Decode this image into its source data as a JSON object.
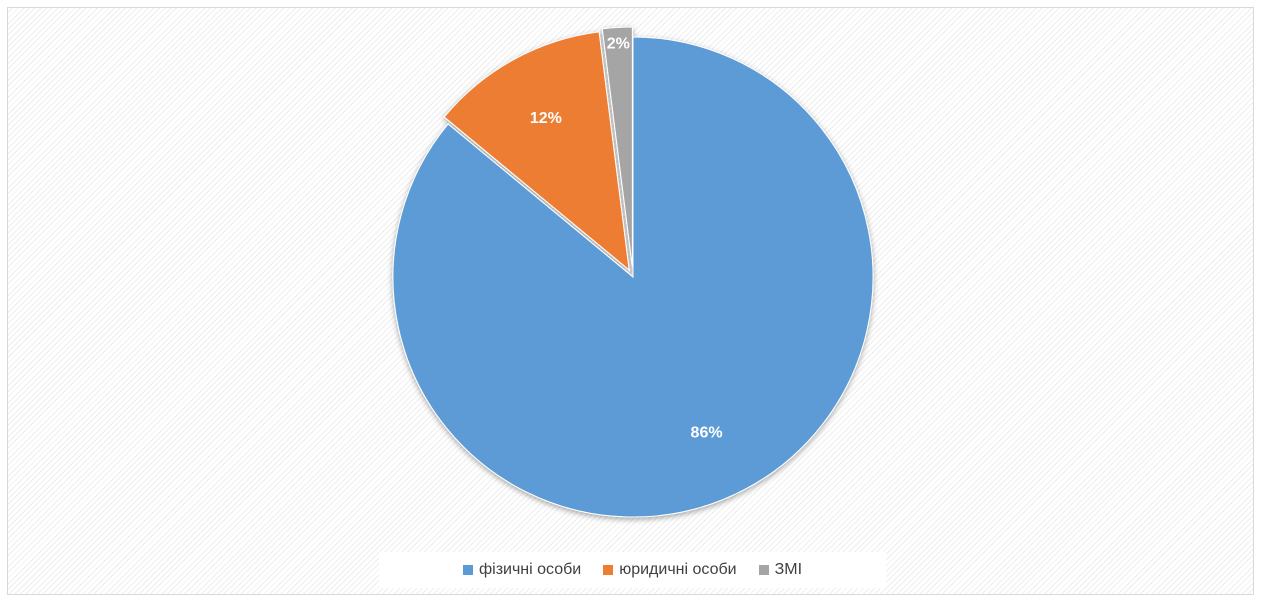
{
  "chart_data": {
    "type": "pie",
    "title": "",
    "categories": [
      "фізичні особи",
      "юридичні особи",
      "ЗМІ"
    ],
    "values": [
      86,
      12,
      2
    ],
    "data_labels": [
      "86%",
      "12%",
      "2%"
    ],
    "colors": [
      "#5b9bd5",
      "#ed7d31",
      "#a5a5a5"
    ],
    "legend_position": "bottom",
    "start_angle_deg": 0,
    "direction": "clockwise",
    "exploded": true
  }
}
